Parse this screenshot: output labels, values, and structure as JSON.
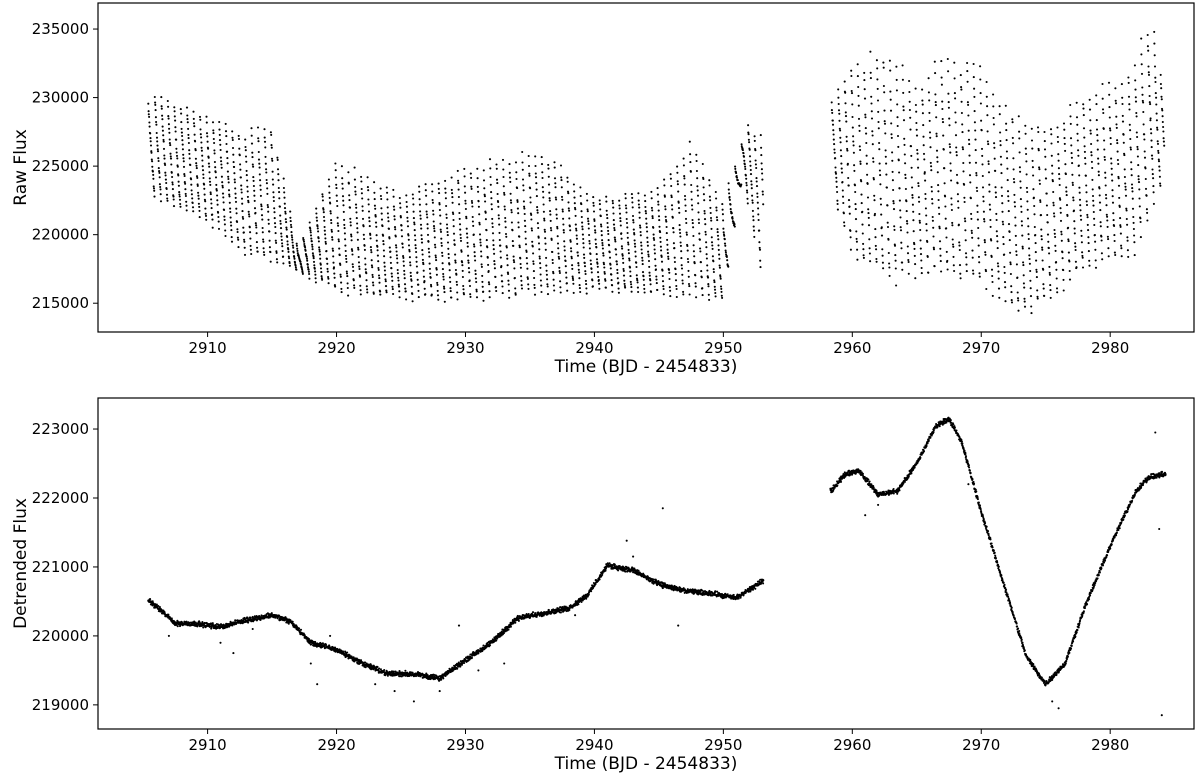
{
  "chart_data": [
    {
      "type": "scatter",
      "title": "",
      "xlabel": "Time (BJD - 2454833)",
      "ylabel": "Raw Flux",
      "xlim": [
        2901.5,
        2986.5
      ],
      "ylim": [
        212900,
        236900
      ],
      "xticks": [
        2910,
        2920,
        2930,
        2940,
        2950,
        2960,
        2970,
        2980
      ],
      "yticks": [
        215000,
        220000,
        225000,
        230000,
        235000
      ],
      "grid": false,
      "legend": "none",
      "marker_color": "#000000",
      "series": [
        {
          "segments": [
            {
              "x_start": 2905.4,
              "x_end": 2953.1,
              "min": [
                [
                  2905.4,
                  222800
                ],
                [
                  2910,
                  221000
                ],
                [
                  2913,
                  218500
                ],
                [
                  2916,
                  217800
                ],
                [
                  2920,
                  215800
                ],
                [
                  2925,
                  215300
                ],
                [
                  2930,
                  215200
                ],
                [
                  2935,
                  215600
                ],
                [
                  2940,
                  215900
                ],
                [
                  2945,
                  215600
                ],
                [
                  2950,
                  215200
                ],
                [
                  2951.5,
                  224200
                ],
                [
                  2953.1,
                  216500
                ]
              ],
              "max": [
                [
                  2905.4,
                  229500
                ],
                [
                  2906,
                  230400
                ],
                [
                  2910,
                  228800
                ],
                [
                  2913,
                  227600
                ],
                [
                  2915,
                  228200
                ],
                [
                  2917,
                  219000
                ],
                [
                  2920,
                  225600
                ],
                [
                  2925,
                  223000
                ],
                [
                  2930,
                  225000
                ],
                [
                  2936,
                  226200
                ],
                [
                  2940,
                  222800
                ],
                [
                  2945,
                  223500
                ],
                [
                  2947.5,
                  226900
                ],
                [
                  2950,
                  222500
                ],
                [
                  2952,
                  228400
                ],
                [
                  2953.1,
                  227000
                ]
              ]
            },
            {
              "x_start": 2958.4,
              "x_end": 2984.2,
              "min": [
                [
                  2958.4,
                  223000
                ],
                [
                  2960,
                  218500
                ],
                [
                  2963,
                  216500
                ],
                [
                  2966,
                  217000
                ],
                [
                  2970,
                  216500
                ],
                [
                  2973,
                  214100
                ],
                [
                  2975,
                  215000
                ],
                [
                  2978,
                  217500
                ],
                [
                  2982,
                  218700
                ],
                [
                  2984.2,
                  224300
                ]
              ],
              "max": [
                [
                  2958.4,
                  229500
                ],
                [
                  2960,
                  232900
                ],
                [
                  2963,
                  233500
                ],
                [
                  2965,
                  231000
                ],
                [
                  2967,
                  233100
                ],
                [
                  2970,
                  232500
                ],
                [
                  2972,
                  229300
                ],
                [
                  2975,
                  228000
                ],
                [
                  2978,
                  230300
                ],
                [
                  2981,
                  231400
                ],
                [
                  2983.3,
                  235900
                ],
                [
                  2984.2,
                  230500
                ]
              ]
            }
          ]
        }
      ]
    },
    {
      "type": "scatter",
      "title": "",
      "xlabel": "Time (BJD - 2454833)",
      "ylabel": "Detrended Flux",
      "xlim": [
        2901.5,
        2986.5
      ],
      "ylim": [
        218650,
        223450
      ],
      "xticks": [
        2910,
        2920,
        2930,
        2940,
        2950,
        2960,
        2970,
        2980
      ],
      "yticks": [
        219000,
        220000,
        221000,
        222000,
        223000
      ],
      "grid": false,
      "legend": "none",
      "marker_color": "#000000",
      "series": [
        {
          "curve": [
            [
              2905.4,
              220520
            ],
            [
              2906.5,
              220350
            ],
            [
              2907.5,
              220180
            ],
            [
              2909,
              220180
            ],
            [
              2911,
              220130
            ],
            [
              2913,
              220230
            ],
            [
              2915,
              220300
            ],
            [
              2916.5,
              220200
            ],
            [
              2918,
              219900
            ],
            [
              2920,
              219800
            ],
            [
              2922,
              219600
            ],
            [
              2924,
              219450
            ],
            [
              2926,
              219450
            ],
            [
              2928,
              219380
            ],
            [
              2930,
              219650
            ],
            [
              2932,
              219900
            ],
            [
              2934,
              220250
            ],
            [
              2936,
              220330
            ],
            [
              2938,
              220400
            ],
            [
              2939.5,
              220600
            ],
            [
              2941,
              221020
            ],
            [
              2943,
              220950
            ],
            [
              2945,
              220750
            ],
            [
              2947,
              220650
            ],
            [
              2949,
              220620
            ],
            [
              2951,
              220550
            ],
            [
              2953.1,
              220800
            ],
            null,
            [
              2958.3,
              222100
            ],
            [
              2959.5,
              222350
            ],
            [
              2960.5,
              222400
            ],
            [
              2962,
              222050
            ],
            [
              2963.5,
              222100
            ],
            [
              2965,
              222500
            ],
            [
              2966.5,
              223050
            ],
            [
              2967.5,
              223150
            ],
            [
              2968.5,
              222800
            ],
            [
              2970,
              221800
            ],
            [
              2972,
              220600
            ],
            [
              2973.5,
              219700
            ],
            [
              2975,
              219300
            ],
            [
              2976.5,
              219600
            ],
            [
              2978,
              220400
            ],
            [
              2980,
              221300
            ],
            [
              2982,
              222100
            ],
            [
              2983,
              222300
            ],
            [
              2984.3,
              222350
            ]
          ],
          "outliers": [
            [
              2907,
              220000
            ],
            [
              2911,
              219900
            ],
            [
              2912,
              219750
            ],
            [
              2913.5,
              220100
            ],
            [
              2918,
              219600
            ],
            [
              2918.5,
              219300
            ],
            [
              2919.5,
              220000
            ],
            [
              2923,
              219300
            ],
            [
              2924.5,
              219200
            ],
            [
              2926,
              219050
            ],
            [
              2928,
              219200
            ],
            [
              2929.5,
              220150
            ],
            [
              2931,
              219500
            ],
            [
              2933,
              219600
            ],
            [
              2937,
              220350
            ],
            [
              2938.5,
              220300
            ],
            [
              2942.5,
              221380
            ],
            [
              2943,
              221150
            ],
            [
              2945.3,
              221850
            ],
            [
              2946.5,
              220150
            ],
            [
              2950,
              220550
            ],
            [
              2961,
              221750
            ],
            [
              2962,
              221900
            ],
            [
              2969,
              222200
            ],
            [
              2975.5,
              219050
            ],
            [
              2976,
              218950
            ],
            [
              2983.5,
              222950
            ],
            [
              2983.8,
              221550
            ],
            [
              2984,
              218850
            ]
          ]
        }
      ]
    }
  ]
}
